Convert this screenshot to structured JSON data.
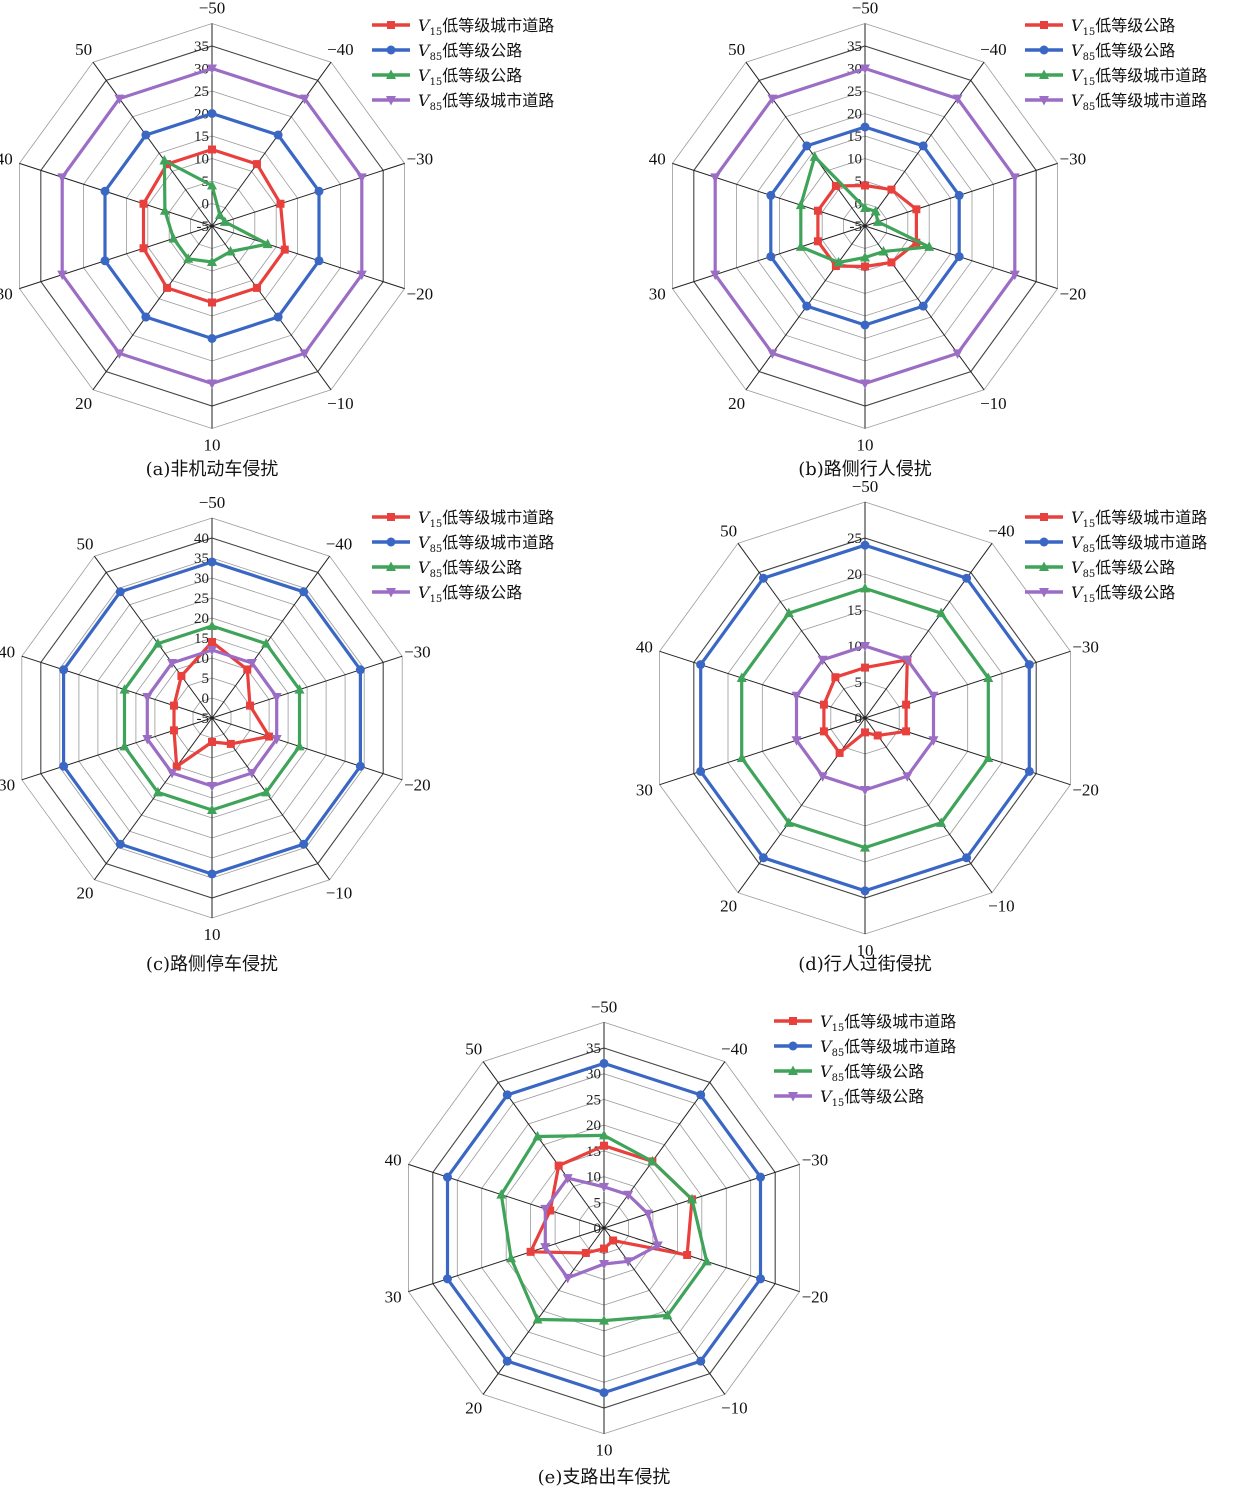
{
  "chart_data": [
    {
      "type": "radar",
      "caption": "(a)非机动车侵扰",
      "categories": [
        "-50",
        "-40",
        "-30",
        "-20",
        "-10",
        "10",
        "20",
        "30",
        "40",
        "50"
      ],
      "rticks": [
        "-5",
        "0",
        "5",
        "10",
        "15",
        "20",
        "25",
        "30",
        "35"
      ],
      "rlim": [
        -5,
        35
      ],
      "series": [
        {
          "name_var": "V",
          "name_sub": "15",
          "name_text": "低等级城市道路",
          "color": "#e8403c",
          "marker": "square",
          "values": [
            12,
            12,
            11,
            12,
            12,
            12,
            12,
            11,
            11,
            12
          ]
        },
        {
          "name_var": "V",
          "name_sub": "85",
          "name_text": "低等级公路",
          "color": "#3a67c4",
          "marker": "circle",
          "values": [
            20,
            20,
            20,
            20,
            20,
            20,
            20,
            20,
            20,
            20
          ]
        },
        {
          "name_var": "V",
          "name_sub": "15",
          "name_text": "低等级公路",
          "color": "#3fa35a",
          "marker": "triangle",
          "values": [
            4,
            -2,
            -2,
            8,
            2,
            3,
            4,
            4,
            6,
            13
          ]
        },
        {
          "name_var": "V",
          "name_sub": "85",
          "name_text": "低等级城市道路",
          "color": "#9b6dc4",
          "marker": "tridown",
          "values": [
            30,
            30,
            30,
            30,
            30,
            30,
            30,
            30,
            30,
            30
          ]
        }
      ]
    },
    {
      "type": "radar",
      "caption": "(b)路侧行人侵扰",
      "categories": [
        "-50",
        "-40",
        "-30",
        "-20",
        "-10",
        "10",
        "20",
        "30",
        "40",
        "50"
      ],
      "rticks": [
        "-5",
        "0",
        "5",
        "10",
        "15",
        "20",
        "25",
        "30",
        "35"
      ],
      "rlim": [
        -5,
        35
      ],
      "series": [
        {
          "name_var": "V",
          "name_sub": "15",
          "name_text": "低等级公路",
          "color": "#e8403c",
          "marker": "square",
          "values": [
            4,
            5,
            7,
            7,
            5,
            4,
            6,
            6,
            6,
            6
          ]
        },
        {
          "name_var": "V",
          "name_sub": "85",
          "name_text": "低等级公路",
          "color": "#3a67c4",
          "marker": "circle",
          "values": [
            17,
            17,
            17,
            17,
            17,
            17,
            17,
            17,
            17,
            17
          ]
        },
        {
          "name_var": "V",
          "name_sub": "15",
          "name_text": "低等级城市道路",
          "color": "#3fa35a",
          "marker": "triangle",
          "values": [
            -1,
            -1,
            -2,
            10,
            2,
            2,
            5,
            10,
            10,
            14
          ]
        },
        {
          "name_var": "V",
          "name_sub": "85",
          "name_text": "低等级城市道路",
          "color": "#9b6dc4",
          "marker": "tridown",
          "values": [
            30,
            30,
            30,
            30,
            30,
            30,
            30,
            30,
            30,
            30
          ]
        }
      ]
    },
    {
      "type": "radar",
      "caption": "(c)路侧停车侵扰",
      "categories": [
        "-50",
        "-40",
        "-30",
        "-20",
        "-10",
        "10",
        "20",
        "30",
        "40",
        "50"
      ],
      "rticks": [
        "-5",
        "0",
        "5",
        "10",
        "15",
        "20",
        "25",
        "30",
        "35",
        "40"
      ],
      "rlim": [
        -5,
        40
      ],
      "series": [
        {
          "name_var": "V",
          "name_sub": "15",
          "name_text": "低等级城市道路",
          "color": "#e8403c",
          "marker": "square",
          "values": [
            14,
            10,
            5,
            10,
            3,
            1,
            10,
            5,
            5,
            8
          ]
        },
        {
          "name_var": "V",
          "name_sub": "85",
          "name_text": "低等级城市道路",
          "color": "#3a67c4",
          "marker": "circle",
          "values": [
            34,
            34,
            34,
            34,
            34,
            34,
            34,
            34,
            34,
            34
          ]
        },
        {
          "name_var": "V",
          "name_sub": "85",
          "name_text": "低等级公路",
          "color": "#3fa35a",
          "marker": "triangle",
          "values": [
            18,
            18,
            18,
            18,
            18,
            18,
            18,
            18,
            18,
            18
          ]
        },
        {
          "name_var": "V",
          "name_sub": "15",
          "name_text": "低等级公路",
          "color": "#9b6dc4",
          "marker": "tridown",
          "values": [
            12,
            12,
            12,
            12,
            12,
            12,
            12,
            12,
            12,
            12
          ]
        }
      ]
    },
    {
      "type": "radar",
      "caption": "(d)行人过街侵扰",
      "categories": [
        "-50",
        "-40",
        "-30",
        "-20",
        "-10",
        "10",
        "20",
        "30",
        "40",
        "50"
      ],
      "rticks": [
        "0",
        "5",
        "10",
        "15",
        "20",
        "25"
      ],
      "rlim": [
        0,
        25
      ],
      "series": [
        {
          "name_var": "V",
          "name_sub": "15",
          "name_text": "低等级城市道路",
          "color": "#e8403c",
          "marker": "square",
          "values": [
            7,
            10,
            6,
            6,
            3,
            2,
            6,
            6,
            6,
            7
          ]
        },
        {
          "name_var": "V",
          "name_sub": "85",
          "name_text": "低等级城市道路",
          "color": "#3a67c4",
          "marker": "circle",
          "values": [
            24,
            24,
            24,
            24,
            24,
            24,
            24,
            24,
            24,
            24
          ]
        },
        {
          "name_var": "V",
          "name_sub": "85",
          "name_text": "低等级公路",
          "color": "#3fa35a",
          "marker": "triangle",
          "values": [
            18,
            18,
            18,
            18,
            18,
            18,
            18,
            18,
            18,
            18
          ]
        },
        {
          "name_var": "V",
          "name_sub": "15",
          "name_text": "低等级公路",
          "color": "#9b6dc4",
          "marker": "tridown",
          "values": [
            10,
            10,
            10,
            10,
            10,
            10,
            10,
            10,
            10,
            10
          ]
        }
      ]
    },
    {
      "type": "radar",
      "caption": "(e)支路出车侵扰",
      "categories": [
        "-50",
        "-40",
        "-30",
        "-20",
        "-10",
        "10",
        "20",
        "30",
        "40",
        "50"
      ],
      "rticks": [
        "0",
        "5",
        "10",
        "15",
        "20",
        "25",
        "30",
        "35"
      ],
      "rlim": [
        0,
        35
      ],
      "series": [
        {
          "name_var": "V",
          "name_sub": "15",
          "name_text": "低等级城市道路",
          "color": "#e8403c",
          "marker": "square",
          "values": [
            16,
            16,
            18,
            17,
            3,
            4,
            6,
            15,
            11,
            15
          ]
        },
        {
          "name_var": "V",
          "name_sub": "85",
          "name_text": "低等级城市道路",
          "color": "#3a67c4",
          "marker": "circle",
          "values": [
            32,
            32,
            32,
            32,
            32,
            32,
            32,
            32,
            32,
            32
          ]
        },
        {
          "name_var": "V",
          "name_sub": "85",
          "name_text": "低等级公路",
          "color": "#3fa35a",
          "marker": "triangle",
          "values": [
            18,
            16,
            18,
            21,
            21,
            18,
            22,
            19,
            21,
            22
          ]
        },
        {
          "name_var": "V",
          "name_sub": "15",
          "name_text": "低等级公路",
          "color": "#9b6dc4",
          "marker": "tridown",
          "values": [
            8,
            8,
            9,
            11,
            8,
            7,
            12,
            12,
            12,
            12
          ]
        }
      ]
    }
  ]
}
